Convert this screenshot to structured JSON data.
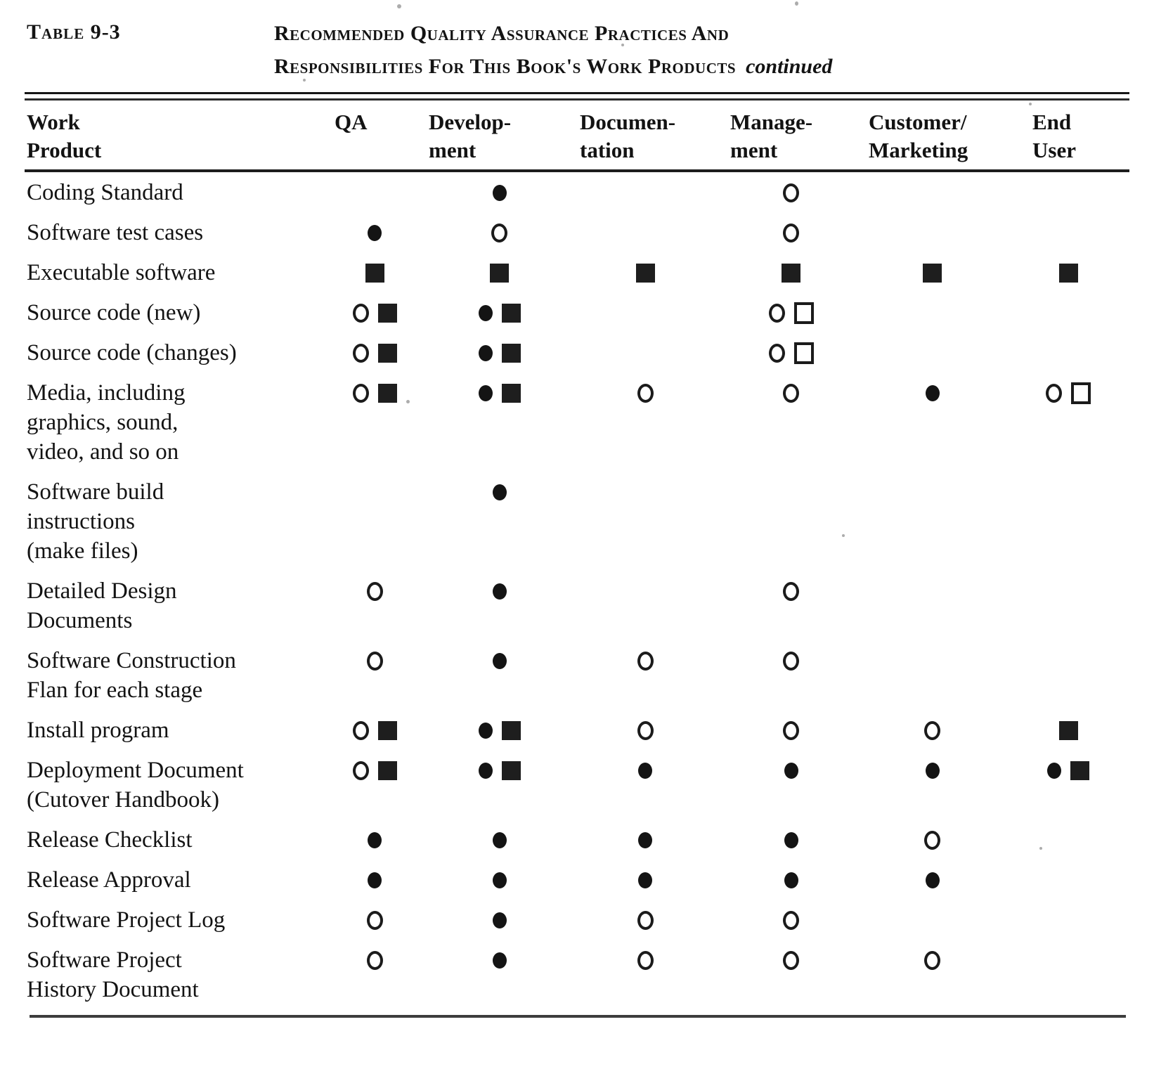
{
  "header": {
    "table_label": "Table 9-3",
    "title_line1": "Recommended Quality Assurance Practices And",
    "title_line2": "Responsibilities For This Book's Work Products",
    "continued": "continued"
  },
  "table": {
    "work_product_header": "Work\nProduct",
    "columns": [
      {
        "id": "qa",
        "label": "QA"
      },
      {
        "id": "dev",
        "label": "Develop-\nment"
      },
      {
        "id": "doc",
        "label": "Documen-\ntation"
      },
      {
        "id": "mgmt",
        "label": "Manage-\nment"
      },
      {
        "id": "cust",
        "label": "Customer/\nMarketing"
      },
      {
        "id": "end",
        "label": "End\nUser"
      }
    ],
    "symbol_names": [
      "circle-filled",
      "circle-open",
      "square-filled",
      "square-open"
    ],
    "ink_color": "#1b1b1b",
    "rows": [
      {
        "name": "Coding Standard",
        "cells": {
          "dev": [
            "circle-filled"
          ],
          "mgmt": [
            "circle-open"
          ]
        }
      },
      {
        "name": "Software test cases",
        "cells": {
          "qa": [
            "circle-filled"
          ],
          "dev": [
            "circle-open"
          ],
          "mgmt": [
            "circle-open"
          ]
        }
      },
      {
        "name": "Executable software",
        "cells": {
          "qa": [
            "square-filled"
          ],
          "dev": [
            "square-filled"
          ],
          "doc": [
            "square-filled"
          ],
          "mgmt": [
            "square-filled"
          ],
          "cust": [
            "square-filled"
          ],
          "end": [
            "square-filled"
          ]
        }
      },
      {
        "name": "Source code (new)",
        "cells": {
          "qa": [
            "circle-open",
            "square-filled"
          ],
          "dev": [
            "circle-filled",
            "square-filled"
          ],
          "mgmt": [
            "circle-open",
            "square-open"
          ]
        }
      },
      {
        "name": "Source code (changes)",
        "cells": {
          "qa": [
            "circle-open",
            "square-filled"
          ],
          "dev": [
            "circle-filled",
            "square-filled"
          ],
          "mgmt": [
            "circle-open",
            "square-open"
          ]
        }
      },
      {
        "name": "Media, including\ngraphics, sound,\nvideo, and so on",
        "cells": {
          "qa": [
            "circle-open",
            "square-filled"
          ],
          "dev": [
            "circle-filled",
            "square-filled"
          ],
          "doc": [
            "circle-open"
          ],
          "mgmt": [
            "circle-open"
          ],
          "cust": [
            "circle-filled"
          ],
          "end": [
            "circle-open",
            "square-open"
          ]
        }
      },
      {
        "name": "Software build\ninstructions\n(make files)",
        "cells": {
          "dev": [
            "circle-filled"
          ]
        }
      },
      {
        "name": "Detailed Design\nDocuments",
        "cells": {
          "qa": [
            "circle-open"
          ],
          "dev": [
            "circle-filled"
          ],
          "mgmt": [
            "circle-open"
          ]
        }
      },
      {
        "name": "Software Construction\nFlan for each stage",
        "cells": {
          "qa": [
            "circle-open"
          ],
          "dev": [
            "circle-filled"
          ],
          "doc": [
            "circle-open"
          ],
          "mgmt": [
            "circle-open"
          ]
        }
      },
      {
        "name": "Install program",
        "cells": {
          "qa": [
            "circle-open",
            "square-filled"
          ],
          "dev": [
            "circle-filled",
            "square-filled"
          ],
          "doc": [
            "circle-open"
          ],
          "mgmt": [
            "circle-open"
          ],
          "cust": [
            "circle-open"
          ],
          "end": [
            "square-filled"
          ]
        }
      },
      {
        "name": "Deployment Document\n(Cutover Handbook)",
        "cells": {
          "qa": [
            "circle-open",
            "square-filled"
          ],
          "dev": [
            "circle-filled",
            "square-filled"
          ],
          "doc": [
            "circle-filled"
          ],
          "mgmt": [
            "circle-filled"
          ],
          "cust": [
            "circle-filled"
          ],
          "end": [
            "circle-filled",
            "square-filled"
          ]
        }
      },
      {
        "name": "Release Checklist",
        "cells": {
          "qa": [
            "circle-filled"
          ],
          "dev": [
            "circle-filled"
          ],
          "doc": [
            "circle-filled"
          ],
          "mgmt": [
            "circle-filled"
          ],
          "cust": [
            "circle-open"
          ]
        }
      },
      {
        "name": "Release Approval",
        "cells": {
          "qa": [
            "circle-filled"
          ],
          "dev": [
            "circle-filled"
          ],
          "doc": [
            "circle-filled"
          ],
          "mgmt": [
            "circle-filled"
          ],
          "cust": [
            "circle-filled"
          ]
        }
      },
      {
        "name": "Software Project Log",
        "cells": {
          "qa": [
            "circle-open"
          ],
          "dev": [
            "circle-filled"
          ],
          "doc": [
            "circle-open"
          ],
          "mgmt": [
            "circle-open"
          ]
        }
      },
      {
        "name": "Software Project\nHistory Document",
        "cells": {
          "qa": [
            "circle-open"
          ],
          "dev": [
            "circle-filled"
          ],
          "doc": [
            "circle-open"
          ],
          "mgmt": [
            "circle-open"
          ],
          "cust": [
            "circle-open"
          ]
        }
      }
    ]
  }
}
